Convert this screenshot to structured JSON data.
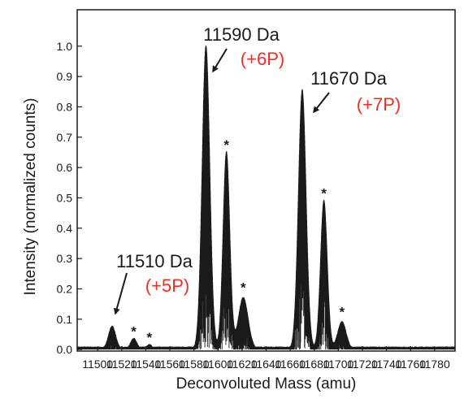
{
  "chart_data": {
    "type": "line",
    "xlabel": "Deconvoluted Mass (amu)",
    "ylabel": "Intensity (normalized counts)",
    "xlim": [
      11483,
      11797
    ],
    "ylim": [
      -0.005,
      1.12
    ],
    "xticks": [
      11500,
      11520,
      11540,
      11560,
      11580,
      11600,
      11620,
      11640,
      11660,
      11680,
      11700,
      11720,
      11740,
      11760,
      11780
    ],
    "yticks": [
      "0.0",
      "0.1",
      "0.2",
      "0.3",
      "0.4",
      "0.5",
      "0.6",
      "0.7",
      "0.8",
      "0.9",
      "1.0"
    ],
    "grid": false,
    "peaks": [
      {
        "x": 11512,
        "y": 0.075,
        "width": 3.0
      },
      {
        "x": 11530,
        "y": 0.035,
        "width": 2.5
      },
      {
        "x": 11543,
        "y": 0.015,
        "width": 2.0
      },
      {
        "x": 11590,
        "y": 1.0,
        "width": 3.2
      },
      {
        "x": 11607,
        "y": 0.65,
        "width": 2.8
      },
      {
        "x": 11621,
        "y": 0.17,
        "width": 4.0
      },
      {
        "x": 11670,
        "y": 0.855,
        "width": 3.2
      },
      {
        "x": 11688,
        "y": 0.49,
        "width": 2.8
      },
      {
        "x": 11703,
        "y": 0.09,
        "width": 3.5
      }
    ],
    "annotations": [
      {
        "mass": "11510 Da",
        "phos": "(+5P)",
        "peak_x": 11512,
        "peak_y": 0.075
      },
      {
        "mass": "11590 Da",
        "phos": "(+6P)",
        "peak_x": 11590,
        "peak_y": 1.0
      },
      {
        "mass": "11670 Da",
        "phos": "(+7P)",
        "peak_x": 11670,
        "peak_y": 0.855
      }
    ],
    "asterisks": [
      {
        "x": 11530,
        "y": 0.055
      },
      {
        "x": 11543,
        "y": 0.035
      },
      {
        "x": 11607,
        "y": 0.67
      },
      {
        "x": 11621,
        "y": 0.2
      },
      {
        "x": 11688,
        "y": 0.51
      },
      {
        "x": 11703,
        "y": 0.12
      }
    ],
    "colors": {
      "trace": "#1a1a1a",
      "phos_label": "#e8302a"
    }
  }
}
